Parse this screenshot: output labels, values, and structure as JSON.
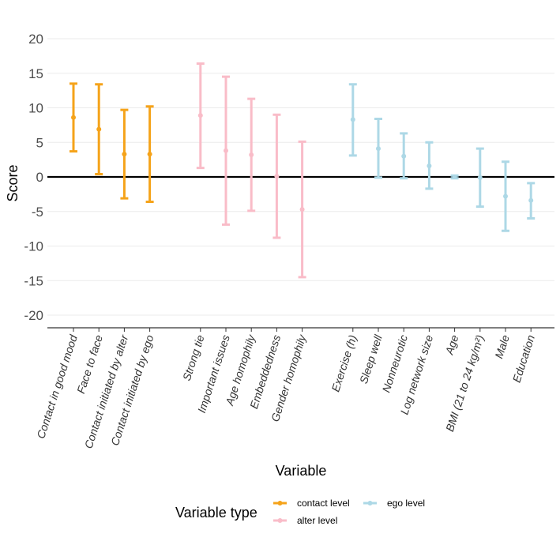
{
  "chart_data": {
    "type": "errorbar",
    "xlabel": "Variable",
    "ylabel": "Score",
    "ylim": [
      -22,
      22
    ],
    "yticks": [
      -20,
      -15,
      -10,
      -5,
      0,
      5,
      10,
      15,
      20
    ],
    "grid": "horizontal",
    "legend_title": "Variable type",
    "legend_position": "bottom",
    "groups": [
      {
        "name": "contact level",
        "color": "#F5A31A"
      },
      {
        "name": "alter level",
        "color": "#F9BCC8"
      },
      {
        "name": "ego level",
        "color": "#ADD8E6"
      }
    ],
    "points": [
      {
        "label": "Contact in good mood",
        "group": "contact level",
        "estimate": 8.6,
        "lower": 3.7,
        "upper": 13.5
      },
      {
        "label": "Face to face",
        "group": "contact level",
        "estimate": 6.9,
        "lower": 0.4,
        "upper": 13.4
      },
      {
        "label": "Contact initiated by alter",
        "group": "contact level",
        "estimate": 3.3,
        "lower": -3.1,
        "upper": 9.7
      },
      {
        "label": "Contact initiated by ego",
        "group": "contact level",
        "estimate": 3.3,
        "lower": -3.6,
        "upper": 10.2
      },
      {
        "label": "Strong tie",
        "group": "alter level",
        "estimate": 8.9,
        "lower": 1.3,
        "upper": 16.4
      },
      {
        "label": "Important issues",
        "group": "alter level",
        "estimate": 3.8,
        "lower": -6.9,
        "upper": 14.5
      },
      {
        "label": "Age homophily",
        "group": "alter level",
        "estimate": 3.2,
        "lower": -4.9,
        "upper": 11.3
      },
      {
        "label": "Embeddedness",
        "group": "alter level",
        "estimate": 0.1,
        "lower": -8.8,
        "upper": 9.0
      },
      {
        "label": "Gender homophily",
        "group": "alter level",
        "estimate": -4.7,
        "lower": -14.5,
        "upper": 5.1
      },
      {
        "label": "Exercise (h)",
        "group": "ego level",
        "estimate": 8.3,
        "lower": 3.1,
        "upper": 13.4
      },
      {
        "label": "Sleep well",
        "group": "ego level",
        "estimate": 4.1,
        "lower": -0.1,
        "upper": 8.4
      },
      {
        "label": "Nonneurotic",
        "group": "ego level",
        "estimate": 3.0,
        "lower": -0.2,
        "upper": 6.3
      },
      {
        "label": "Log network size",
        "group": "ego level",
        "estimate": 1.6,
        "lower": -1.7,
        "upper": 5.0
      },
      {
        "label": "Age",
        "group": "ego level",
        "estimate": 0.0,
        "lower": -0.2,
        "upper": 0.2
      },
      {
        "label": "BMI (21 to 24 kg/m²)",
        "group": "ego level",
        "estimate": -0.1,
        "lower": -4.3,
        "upper": 4.1
      },
      {
        "label": "Male",
        "group": "ego level",
        "estimate": -2.8,
        "lower": -7.8,
        "upper": 2.2
      },
      {
        "label": "Education",
        "group": "ego level",
        "estimate": -3.4,
        "lower": -6.0,
        "upper": -0.9
      }
    ]
  }
}
